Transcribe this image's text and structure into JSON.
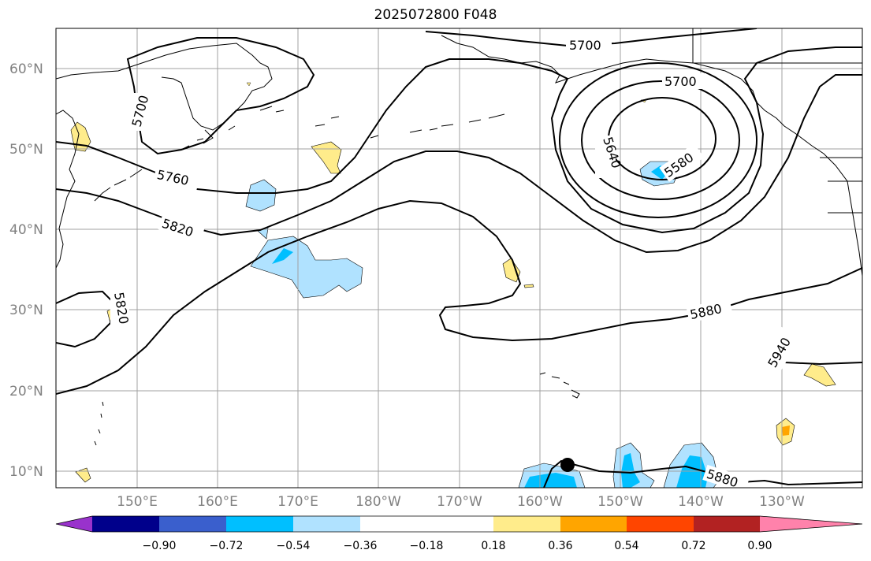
{
  "title": "2025072800 F048",
  "colors": {
    "grid": "#a0a0a0",
    "coast": "#000000",
    "contour": "#000000",
    "marker": "#000000"
  },
  "map": {
    "lat_labels": [
      "60°N",
      "50°N",
      "40°N",
      "30°N",
      "20°N",
      "10°N"
    ],
    "lon_labels": [
      "150°E",
      "160°E",
      "170°E",
      "180°W",
      "170°W",
      "160°W",
      "150°W",
      "140°W",
      "130°W"
    ],
    "contour_labels": [
      "5700",
      "5700",
      "5700",
      "5760",
      "5820",
      "5820",
      "5640",
      "5580",
      "5880",
      "5940",
      "5880"
    ]
  },
  "colorbar": {
    "colors": [
      "#9932cc",
      "#00008b",
      "#3a5fcd",
      "#00bfff",
      "#b0e2ff",
      "#ffffff",
      "#ffec8b",
      "#ffa500",
      "#ff4500",
      "#b22222",
      "#ff82ab"
    ],
    "tick_labels": [
      "−0.90",
      "−0.72",
      "−0.54",
      "−0.36",
      "−0.18",
      "0.18",
      "0.36",
      "0.54",
      "0.72",
      "0.90"
    ]
  }
}
